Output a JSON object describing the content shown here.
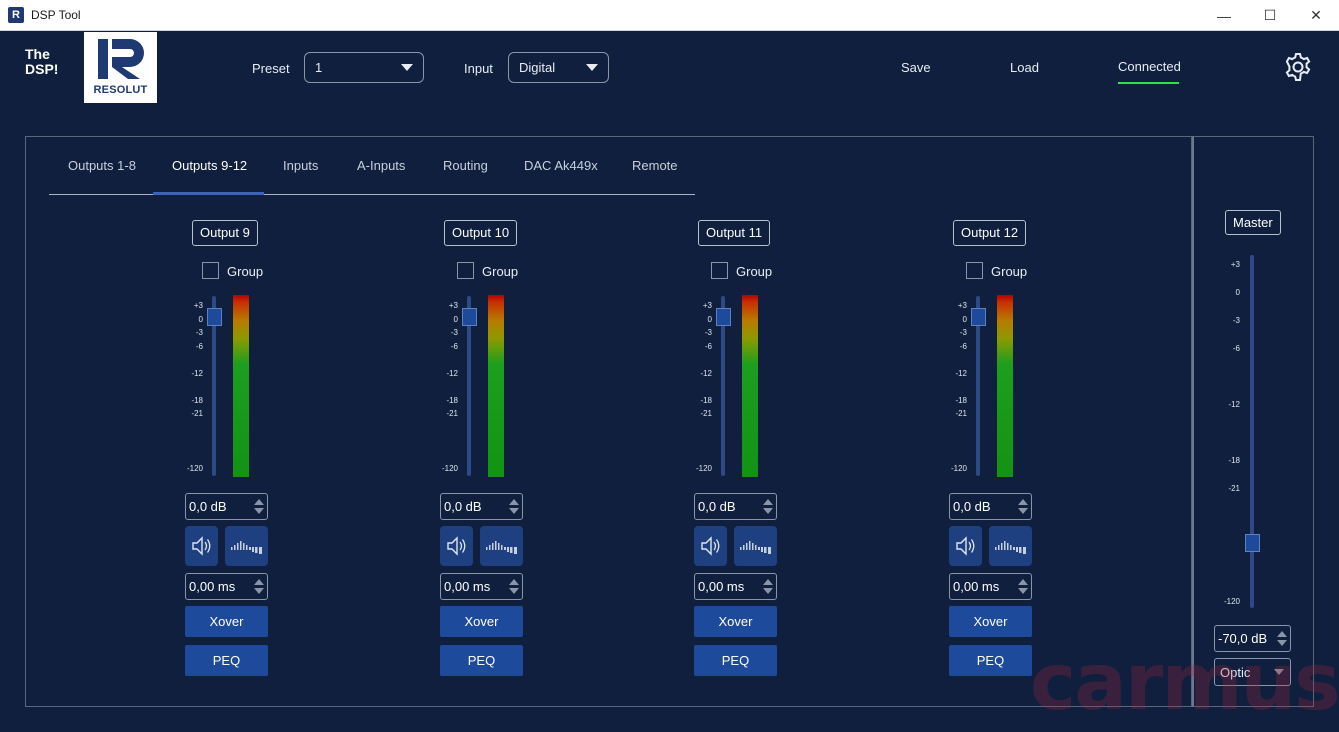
{
  "window": {
    "title": "DSP Tool",
    "minimize": "—",
    "maximize": "☐",
    "close": "✕",
    "icon_letter": "R"
  },
  "header": {
    "brand_line1": "The",
    "brand_line2": "DSP!",
    "logo_text": "RESOLUT",
    "preset_label": "Preset",
    "preset_value": "1",
    "input_label": "Input",
    "input_value": "Digital",
    "save": "Save",
    "load": "Load",
    "connected": "Connected",
    "status_color": "#2ee04a"
  },
  "tabs": [
    "Outputs 1-8",
    "Outputs 9-12",
    "Inputs",
    "A-Inputs",
    "Routing",
    "DAC Ak449x",
    "Remote"
  ],
  "active_tab": "Outputs 9-12",
  "scale_labels": [
    "+3",
    "0",
    "-3",
    "-6",
    "-12",
    "-18",
    "-21",
    "-120"
  ],
  "channels": [
    {
      "name": "Output 9",
      "group": "Group",
      "gain": "0,0 dB",
      "delay": "0,00 ms",
      "xover": "Xover",
      "peq": "PEQ"
    },
    {
      "name": "Output 10",
      "group": "Group",
      "gain": "0,0 dB",
      "delay": "0,00 ms",
      "xover": "Xover",
      "peq": "PEQ"
    },
    {
      "name": "Output 11",
      "group": "Group",
      "gain": "0,0 dB",
      "delay": "0,00 ms",
      "xover": "Xover",
      "peq": "PEQ"
    },
    {
      "name": "Output 12",
      "group": "Group",
      "gain": "0,0 dB",
      "delay": "0,00 ms",
      "xover": "Xover",
      "peq": "PEQ"
    }
  ],
  "master": {
    "label": "Master",
    "scale_labels": [
      "+3",
      "0",
      "-3",
      "-6",
      "-12",
      "-18",
      "-21",
      "-120"
    ],
    "gain": "-70,0 dB",
    "source": "Optic"
  },
  "watermark": "carmus"
}
